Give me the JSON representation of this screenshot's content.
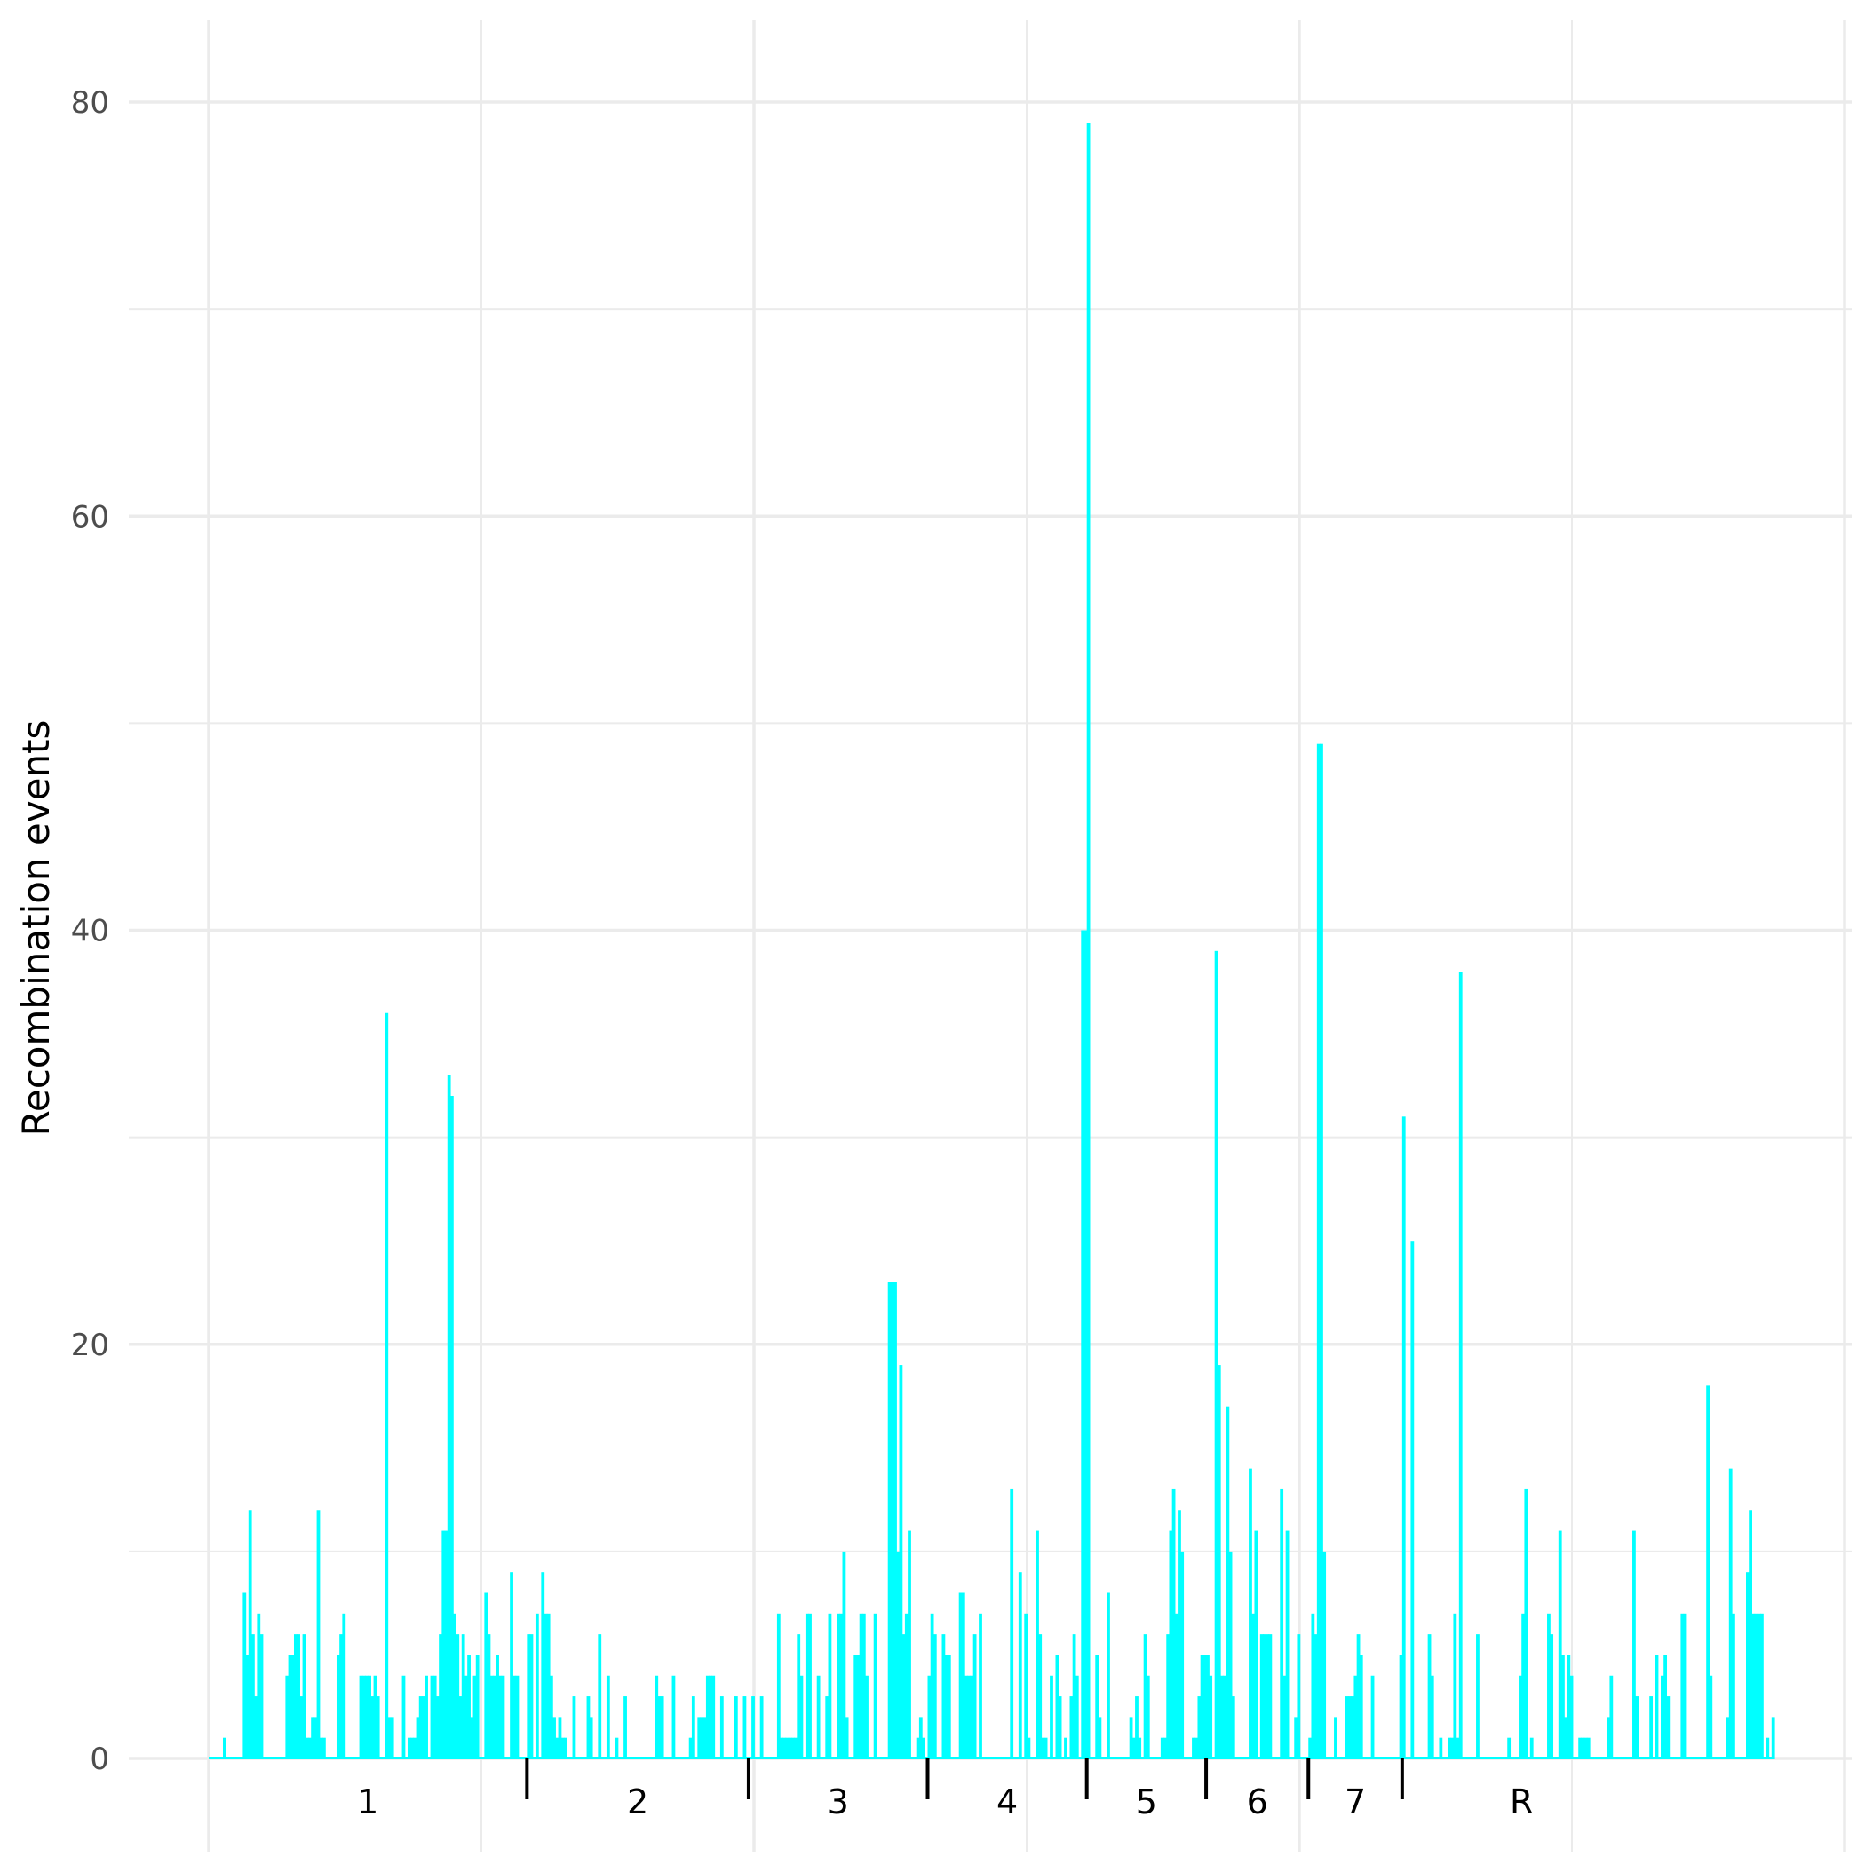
{
  "chart_data": {
    "type": "bar",
    "title": "",
    "xlabel": "",
    "ylabel": "Recombination events",
    "ylim": [
      0,
      80
    ],
    "yticks": [
      "0",
      "20",
      "40",
      "60",
      "80"
    ],
    "grid": true,
    "legend": "none",
    "bar_color": "#00FFFF",
    "segments": [
      {
        "label": "1",
        "start": 0,
        "end": 112
      },
      {
        "label": "2",
        "start": 112,
        "end": 190
      },
      {
        "label": "3",
        "start": 190,
        "end": 253
      },
      {
        "label": "4",
        "start": 253,
        "end": 309
      },
      {
        "label": "5",
        "start": 309,
        "end": 351
      },
      {
        "label": "6",
        "start": 351,
        "end": 387
      },
      {
        "label": "7",
        "start": 387,
        "end": 420
      },
      {
        "label": "R",
        "start": 420,
        "end": 504
      }
    ],
    "values": [
      0,
      0,
      0,
      0,
      0,
      1,
      0,
      0,
      0,
      0,
      0,
      0,
      8,
      5,
      12,
      6,
      3,
      7,
      6,
      0,
      0,
      0,
      0,
      0,
      0,
      0,
      0,
      4,
      5,
      5,
      6,
      6,
      3,
      6,
      1,
      1,
      2,
      2,
      12,
      1,
      1,
      0,
      0,
      0,
      0,
      5,
      6,
      7,
      0,
      0,
      0,
      0,
      0,
      4,
      4,
      4,
      4,
      3,
      4,
      3,
      0,
      0,
      36,
      2,
      2,
      0,
      0,
      0,
      4,
      0,
      1,
      1,
      1,
      2,
      3,
      3,
      4,
      0,
      4,
      4,
      3,
      6,
      11,
      11,
      33,
      32,
      7,
      6,
      3,
      6,
      4,
      5,
      2,
      4,
      5,
      0,
      0,
      8,
      6,
      4,
      4,
      5,
      4,
      4,
      0,
      0,
      9,
      4,
      4,
      0,
      0,
      0,
      6,
      6,
      0,
      7,
      0,
      9,
      7,
      7,
      4,
      2,
      1,
      2,
      1,
      1,
      0,
      0,
      3,
      0,
      0,
      0,
      0,
      3,
      2,
      0,
      0,
      6,
      0,
      0,
      4,
      0,
      0,
      1,
      0,
      0,
      3,
      0,
      0,
      0,
      0,
      0,
      0,
      0,
      0,
      0,
      0,
      4,
      3,
      3,
      0,
      0,
      0,
      4,
      0,
      0,
      0,
      0,
      0,
      1,
      3,
      0,
      2,
      2,
      2,
      4,
      4,
      4,
      0,
      0,
      3,
      0,
      0,
      0,
      0,
      3,
      0,
      0,
      3,
      0,
      0,
      3,
      0,
      0,
      3,
      0,
      0,
      0,
      0,
      0,
      7,
      1,
      1,
      1,
      1,
      1,
      1,
      6,
      4,
      0,
      7,
      7,
      0,
      0,
      4,
      0,
      0,
      3,
      7,
      0,
      0,
      7,
      7,
      10,
      2,
      0,
      0,
      5,
      5,
      7,
      7,
      4,
      0,
      0,
      7,
      0,
      0,
      0,
      0,
      23,
      23,
      23,
      10,
      19,
      6,
      7,
      11,
      0,
      0,
      1,
      2,
      1,
      0,
      4,
      7,
      6,
      0,
      0,
      6,
      5,
      5,
      0,
      0,
      0,
      8,
      8,
      4,
      4,
      4,
      6,
      0,
      7,
      0,
      0,
      0,
      0,
      0,
      0,
      0,
      0,
      0,
      0,
      13,
      0,
      0,
      9,
      0,
      7,
      1,
      0,
      0,
      11,
      6,
      1,
      1,
      0,
      4,
      0,
      5,
      3,
      0,
      1,
      0,
      3,
      6,
      4,
      0,
      40,
      40,
      79,
      0,
      0,
      5,
      2,
      0,
      0,
      8,
      0,
      0,
      0,
      0,
      0,
      0,
      0,
      2,
      1,
      3,
      1,
      0,
      6,
      4,
      0,
      0,
      0,
      0,
      1,
      1,
      6,
      11,
      13,
      7,
      12,
      10,
      0,
      0,
      0,
      1,
      1,
      3,
      5,
      5,
      5,
      4,
      0,
      39,
      19,
      4,
      4,
      17,
      10,
      3,
      0,
      0,
      0,
      0,
      0,
      14,
      7,
      11,
      0,
      6,
      6,
      6,
      6,
      0,
      0,
      0,
      13,
      4,
      11,
      0,
      0,
      2,
      6,
      0,
      0,
      0,
      1,
      7,
      6,
      49,
      49,
      10,
      0,
      0,
      0,
      2,
      0,
      0,
      0,
      3,
      3,
      3,
      4,
      6,
      5,
      0,
      0,
      0,
      4,
      0,
      0,
      0,
      0,
      0,
      0,
      0,
      0,
      0,
      5,
      31,
      0,
      0,
      25,
      0,
      0,
      0,
      0,
      0,
      6,
      4,
      0,
      0,
      1,
      0,
      0,
      1,
      1,
      7,
      1,
      38,
      0,
      0,
      0,
      0,
      0,
      6,
      0,
      0,
      0,
      0,
      0,
      0,
      0,
      0,
      0,
      0,
      1,
      0,
      0,
      0,
      4,
      7,
      13,
      0,
      1,
      0,
      0,
      0,
      0,
      0,
      7,
      6,
      0,
      0,
      11,
      5,
      2,
      5,
      4,
      0,
      0,
      1,
      1,
      1,
      1,
      0,
      0,
      0,
      0,
      0,
      0,
      2,
      4,
      0,
      0,
      0,
      0,
      0,
      0,
      0,
      11,
      3,
      0,
      0,
      0,
      0,
      3,
      0,
      5,
      0,
      4,
      5,
      3,
      0,
      0,
      0,
      0,
      7,
      7,
      0,
      0,
      0,
      0,
      0,
      0,
      0,
      18,
      4,
      0,
      0,
      0,
      0,
      0,
      2,
      14,
      7,
      0,
      0,
      0,
      0,
      9,
      12,
      7,
      7,
      7,
      7,
      0,
      1,
      0,
      2
    ]
  }
}
